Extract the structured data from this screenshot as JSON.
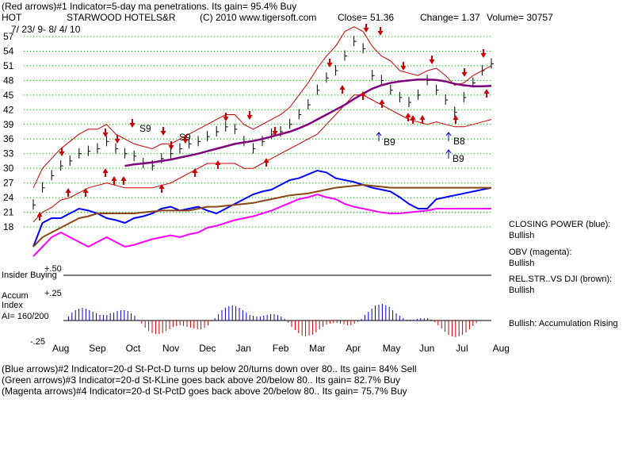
{
  "header": {
    "line1": "(Red arrows)#1 Indicator=5-day ma penetrations. Its gain= 95.4% Buy",
    "ticker": "HOT",
    "company": "STARWOOD HOTELS&R",
    "copyright": "(C) 2010 www.tigersoft.com",
    "close": "Close=  51.36",
    "change": "Change= 1.37",
    "volume": "Volume= 30757",
    "date_range": "7/ 23/ 9- 8/ 4/ 10"
  },
  "indicators": {
    "closing_power_label": "CLOSING POWER (blue):",
    "closing_power_status": "Bullish",
    "obv_label": "OBV (magenta):",
    "obv_status": "Bullish",
    "relstr_label": "REL.STR..VS DJI (brown):",
    "relstr_status": "Bullish",
    "accum_status": "Bullish: Accumulation Rising"
  },
  "lower_panel": {
    "insider_buying": "Insider Buying",
    "plus50": "+.50",
    "plus25": "+.25",
    "minus25": "-.25",
    "accum": "Accum",
    "index": "Index",
    "ai": "AI= 160/200"
  },
  "footer": {
    "line1": "(Blue arrows)#2 Indicator=20-d St-Pct-D turns up below 20/turns down over 80.. Its gain= 84% Sell",
    "line2": "(Green arrows)#3 Indicator=20-d St-KLine goes back above 20/below 80.. Its gain= 82.7% Buy",
    "line3": "(Magenta arrows)#4 Indicator=20-d St-PctD goes back above 20/below 80.. Its gain= 75.7% Buy"
  },
  "chart_data": {
    "type": "line",
    "title": "STARWOOD HOTELS&R (HOT)",
    "x_tick_labels": [
      "Aug",
      "Sep",
      "Oct",
      "Nov",
      "Dec",
      "Jan",
      "Feb",
      "Mar",
      "Apr",
      "May",
      "Jun",
      "Jul",
      "Aug"
    ],
    "y_tick_labels": [
      "57",
      "54",
      "51",
      "48",
      "45",
      "42",
      "39",
      "36",
      "33",
      "30",
      "27",
      "24",
      "21",
      "18"
    ],
    "ylim": [
      18,
      57
    ],
    "signal_labels": [
      "S9",
      "S9",
      "B9",
      "B8",
      "B9"
    ],
    "series": [
      {
        "name": "Close",
        "color": "#000000",
        "values": [
          22.5,
          26.0,
          28.5,
          30.5,
          31.5,
          33.0,
          33.5,
          34.0,
          35.5,
          34.0,
          33.0,
          32.5,
          31.0,
          30.5,
          32.0,
          33.0,
          34.0,
          35.0,
          35.5,
          36.5,
          37.5,
          38.5,
          38.0,
          35.5,
          34.0,
          35.5,
          37.0,
          37.5,
          39.0,
          41.0,
          43.0,
          46.0,
          48.5,
          50.0,
          53.0,
          56.0,
          54.5,
          49.0,
          48.0,
          46.0,
          44.5,
          43.5,
          45.0,
          48.0,
          46.0,
          44.0,
          41.5,
          44.5,
          47.5,
          50.0,
          51.4
        ]
      },
      {
        "name": "Upper band",
        "color": "#cc0000",
        "values": [
          26,
          30,
          32,
          34,
          35.5,
          37,
          38,
          38,
          39,
          37,
          36,
          35,
          34.5,
          34,
          35,
          35,
          36,
          37,
          38,
          39,
          40,
          41,
          41,
          39,
          38,
          39,
          40,
          41,
          42.5,
          45,
          47.5,
          50.5,
          53,
          55,
          58,
          59,
          58,
          55,
          53,
          52,
          50,
          49.5,
          49,
          50,
          50.5,
          49,
          47,
          47.5,
          49,
          50,
          51
        ]
      },
      {
        "name": "Lower band",
        "color": "#cc0000",
        "values": [
          19,
          21,
          22,
          23.5,
          24,
          25,
          26,
          26.5,
          27,
          26.5,
          26,
          26,
          26,
          26,
          26.5,
          27,
          28,
          29,
          30,
          31,
          31,
          31,
          31,
          30,
          30,
          31,
          32,
          33,
          34,
          35,
          36,
          37,
          39,
          41,
          43,
          45,
          45,
          44,
          43,
          42,
          41,
          40,
          39.5,
          39,
          39.5,
          39,
          38.5,
          38.5,
          39,
          39.5,
          40
        ]
      },
      {
        "name": "Moving average",
        "color": "#800080",
        "values": [
          null,
          null,
          null,
          null,
          null,
          null,
          null,
          null,
          null,
          null,
          30.5,
          30.8,
          31.0,
          31.2,
          31.5,
          31.8,
          32.2,
          32.6,
          33.0,
          33.5,
          34.0,
          34.5,
          35.0,
          35.3,
          35.6,
          36.0,
          36.5,
          37.0,
          37.5,
          38.2,
          39.0,
          40.0,
          41.0,
          42.0,
          43.0,
          44.2,
          45.3,
          46.3,
          47.0,
          47.5,
          47.8,
          48.0,
          48.2,
          48.2,
          48.1,
          47.8,
          47.3,
          47.0,
          46.8,
          46.8,
          46.9
        ]
      },
      {
        "name": "Closing Power (blue)",
        "color": "#0000ff",
        "values": [
          0.2,
          0.45,
          0.5,
          0.5,
          0.55,
          0.6,
          0.58,
          0.55,
          0.5,
          0.48,
          0.45,
          0.5,
          0.52,
          0.55,
          0.6,
          0.62,
          0.58,
          0.6,
          0.62,
          0.58,
          0.55,
          0.6,
          0.65,
          0.7,
          0.75,
          0.78,
          0.8,
          0.85,
          0.9,
          0.92,
          0.96,
          1.0,
          0.98,
          0.92,
          0.9,
          0.88,
          0.85,
          0.82,
          0.8,
          0.78,
          0.72,
          0.65,
          0.6,
          0.6,
          0.7,
          0.72,
          0.74,
          0.76,
          0.78,
          0.8,
          0.82
        ]
      },
      {
        "name": "OBV (magenta)",
        "color": "#ff00ff",
        "values": [
          0.1,
          0.2,
          0.3,
          0.35,
          0.3,
          0.25,
          0.2,
          0.25,
          0.3,
          0.25,
          0.2,
          0.22,
          0.25,
          0.28,
          0.3,
          0.32,
          0.3,
          0.33,
          0.35,
          0.4,
          0.42,
          0.45,
          0.48,
          0.5,
          0.52,
          0.55,
          0.58,
          0.62,
          0.66,
          0.7,
          0.72,
          0.75,
          0.72,
          0.7,
          0.65,
          0.62,
          0.6,
          0.58,
          0.56,
          0.55,
          0.55,
          0.56,
          0.57,
          0.58,
          0.6,
          0.6,
          0.6,
          0.6,
          0.6,
          0.6,
          0.6
        ]
      },
      {
        "name": "Rel.Str vs DJI (brown)",
        "color": "#8b4513",
        "values": [
          0.2,
          0.3,
          0.35,
          0.4,
          0.45,
          0.5,
          0.52,
          0.55,
          0.55,
          0.55,
          0.55,
          0.55,
          0.56,
          0.57,
          0.58,
          0.58,
          0.58,
          0.58,
          0.6,
          0.62,
          0.62,
          0.63,
          0.64,
          0.65,
          0.66,
          0.68,
          0.7,
          0.72,
          0.74,
          0.75,
          0.76,
          0.78,
          0.8,
          0.82,
          0.83,
          0.84,
          0.85,
          0.84,
          0.83,
          0.82,
          0.82,
          0.82,
          0.82,
          0.82,
          0.82,
          0.82,
          0.82,
          0.82,
          0.82,
          0.82,
          0.82
        ]
      }
    ]
  }
}
